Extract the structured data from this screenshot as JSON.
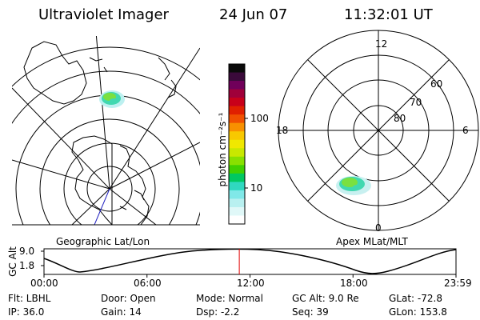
{
  "header": {
    "instrument": "Ultraviolet Imager",
    "date": "24 Jun 07",
    "time": "11:32:01 UT"
  },
  "left_panel": {
    "label": "Geographic Lat/Lon"
  },
  "right_panel": {
    "label": "Apex MLat/MLT",
    "mlt_labels": {
      "top": "12",
      "left": "18",
      "right": "6",
      "bottom": "0"
    },
    "lat_labels": [
      "60",
      "70",
      "80"
    ]
  },
  "colorbar": {
    "unit_label": "photon cm⁻²s⁻¹",
    "tick_labels": [
      "100",
      "10"
    ],
    "colors": [
      "#0a0a0a",
      "#3a0a3a",
      "#70005a",
      "#a0003a",
      "#c8001a",
      "#e02000",
      "#f05000",
      "#f89000",
      "#f8c800",
      "#f0e800",
      "#c8e800",
      "#88e000",
      "#40d000",
      "#00c860",
      "#30d8c0",
      "#80e8e8",
      "#b8f0f0",
      "#e0f8f8",
      "#ffffff"
    ]
  },
  "altitude_plot": {
    "ylabel": "GC Alt",
    "yticks": [
      "9.0",
      "1.8"
    ],
    "xticks": [
      "00:00",
      "06:00",
      "12:00",
      "18:00",
      "23:59"
    ],
    "current_time_fraction": 0.474
  },
  "info": {
    "filter": "Flt: LBHL",
    "ip": "IP: 36.0",
    "door": "Door: Open",
    "gain": "Gain: 14",
    "mode": "Mode: Normal",
    "dsp": "Dsp:    -2.2",
    "gc_alt": "GC Alt: 9.0 Re",
    "seq": "Seq: 39",
    "glat": "GLat: -72.8",
    "glon": "GLon: 153.8"
  }
}
